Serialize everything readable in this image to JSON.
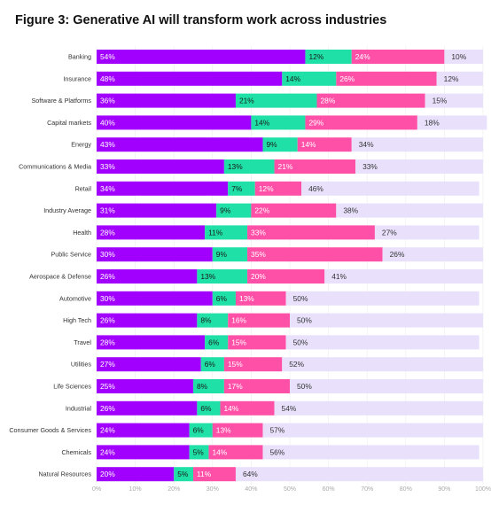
{
  "title": "Figure 3: Generative AI will transform work across industries",
  "chart_data": {
    "type": "bar",
    "stacked": true,
    "orientation": "horizontal",
    "categories": [
      "Banking",
      "Insurance",
      "Software & Platforms",
      "Capital markets",
      "Energy",
      "Communications & Media",
      "Retail",
      "Industry Average",
      "Health",
      "Public Service",
      "Aerospace & Defense",
      "Automotive",
      "High Tech",
      "Travel",
      "Utilities",
      "Life Sciences",
      "Industrial",
      "Consumer Goods & Services",
      "Chemicals",
      "Natural Resources"
    ],
    "series": [
      {
        "color": "#a100ff",
        "label_color": "#ffffff",
        "values": [
          54,
          48,
          36,
          40,
          43,
          33,
          34,
          31,
          28,
          30,
          26,
          30,
          26,
          28,
          27,
          25,
          26,
          24,
          24,
          20
        ]
      },
      {
        "color": "#1fe0a6",
        "label_color": "#1a1a1a",
        "values": [
          12,
          14,
          21,
          14,
          9,
          13,
          7,
          9,
          11,
          9,
          13,
          6,
          8,
          6,
          6,
          8,
          6,
          6,
          5,
          5
        ]
      },
      {
        "color": "#ff50a8",
        "label_color": "#ffffff",
        "values": [
          24,
          26,
          28,
          29,
          14,
          21,
          12,
          22,
          33,
          35,
          20,
          13,
          16,
          15,
          15,
          17,
          14,
          13,
          14,
          11
        ]
      },
      {
        "color": "#e9e1fc",
        "label_color": "#333333",
        "values": [
          10,
          12,
          15,
          18,
          34,
          33,
          46,
          38,
          27,
          26,
          41,
          50,
          50,
          50,
          52,
          50,
          54,
          57,
          56,
          64
        ]
      }
    ],
    "xlim": [
      0,
      100
    ],
    "xticks": [
      "0%",
      "10%",
      "20%",
      "30%",
      "40%",
      "50%",
      "60%",
      "70%",
      "80%",
      "90%",
      "100%"
    ],
    "grid": true
  }
}
